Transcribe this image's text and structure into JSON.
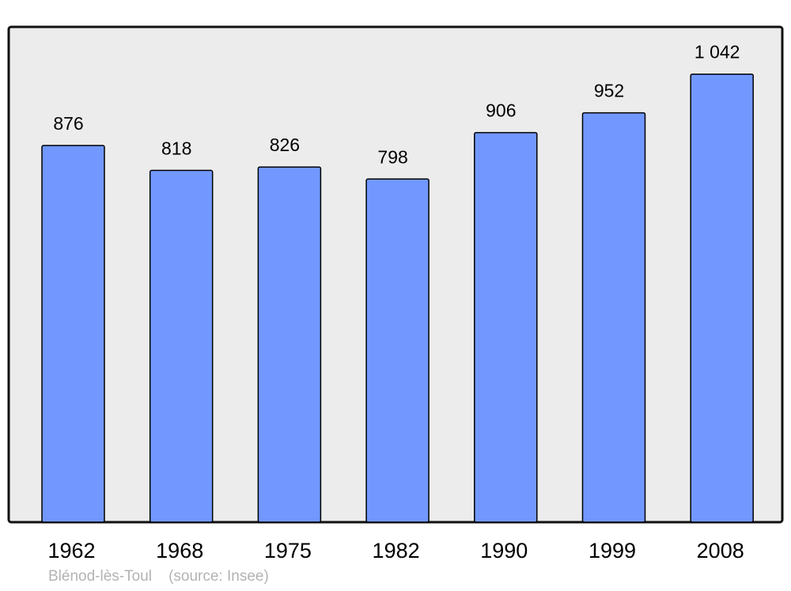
{
  "chart_data": {
    "type": "bar",
    "categories": [
      "1962",
      "1968",
      "1975",
      "1982",
      "1990",
      "1999",
      "2008"
    ],
    "values": [
      876,
      818,
      826,
      798,
      906,
      952,
      1042
    ],
    "value_labels": [
      "876",
      "818",
      "826",
      "798",
      "906",
      "952",
      "1 042"
    ],
    "title": "",
    "xlabel": "",
    "ylabel": "",
    "ylim": [
      0,
      1150
    ],
    "grid": false,
    "legend": "none",
    "colors": {
      "bar": "#7298ff",
      "background": "#ececec",
      "frame": "#000000"
    }
  },
  "footer": {
    "place": "Blénod-lès-Toul",
    "source": "(source: Insee)"
  }
}
